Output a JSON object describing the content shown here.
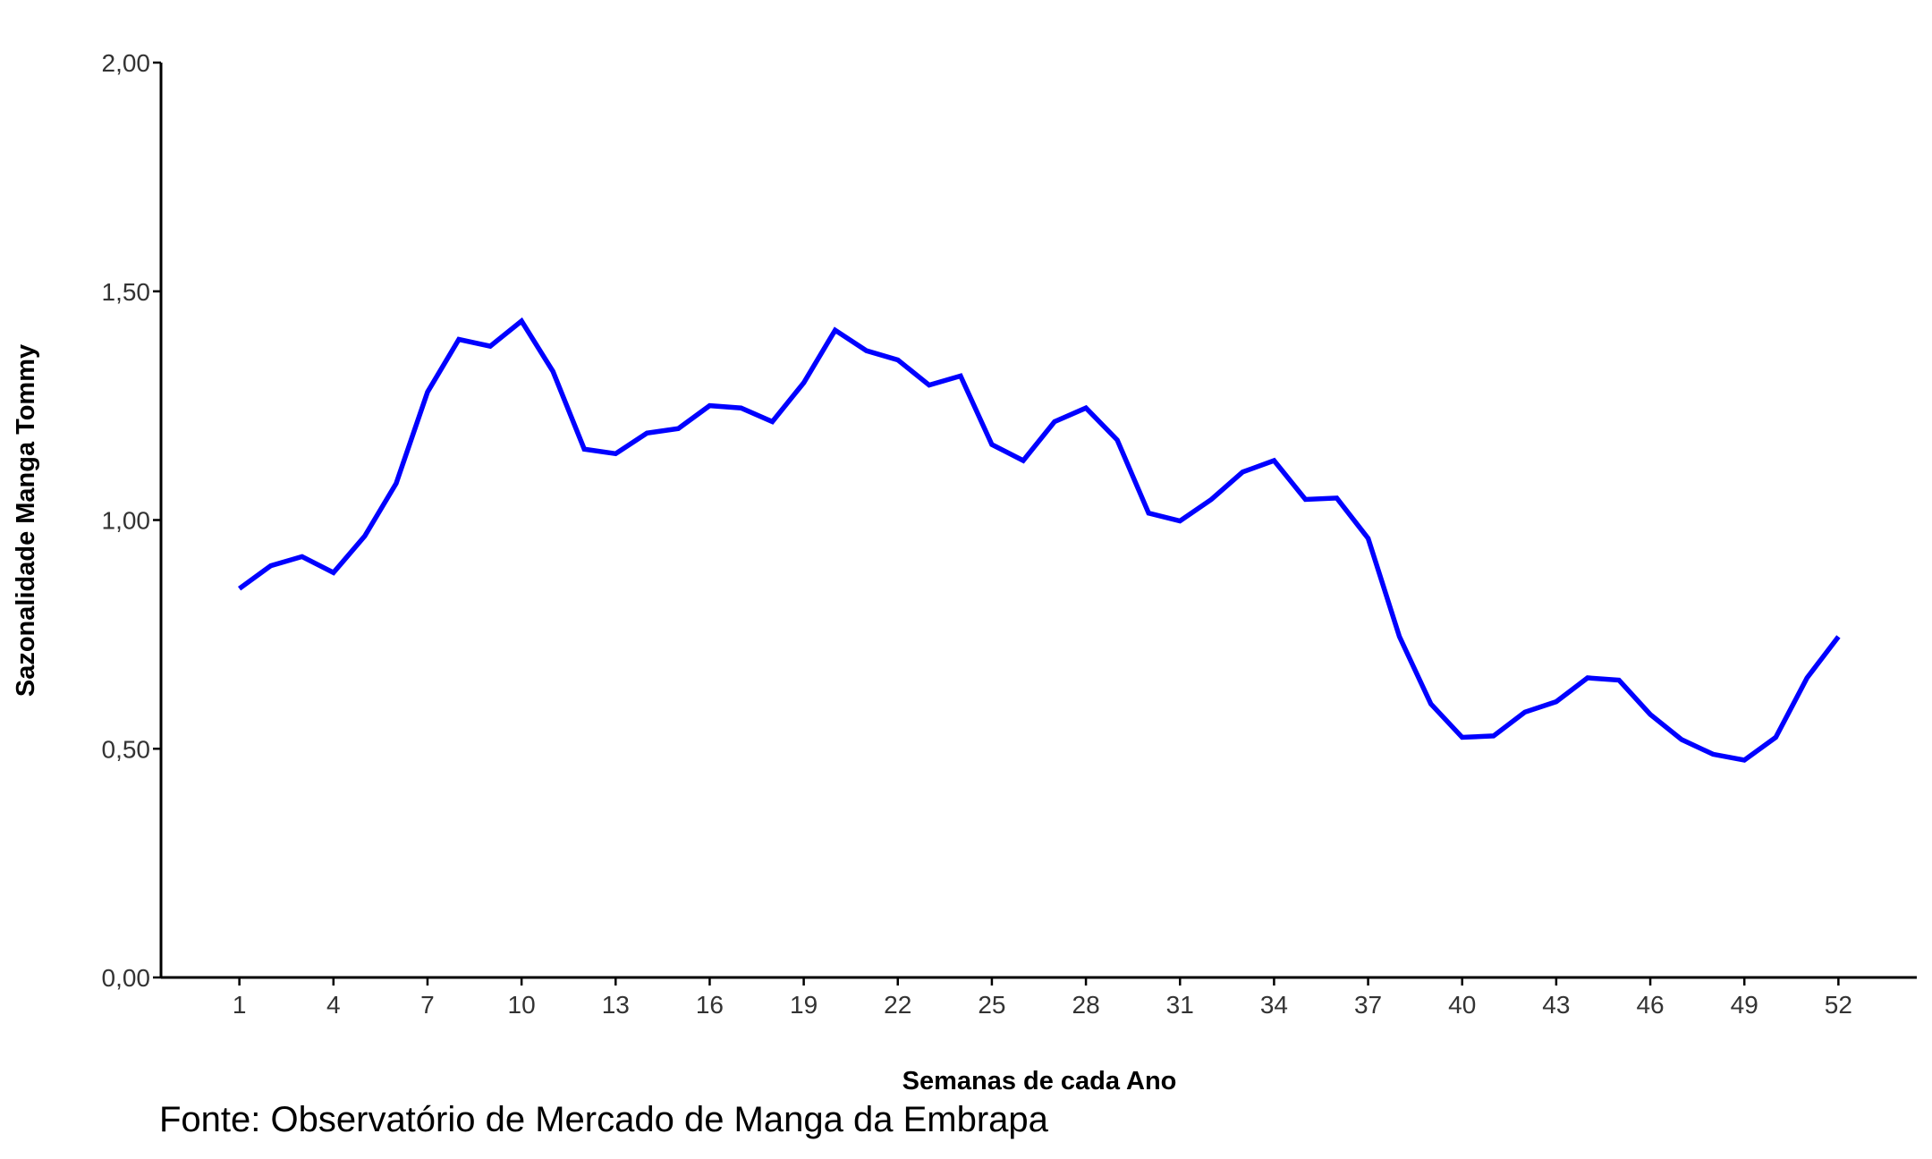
{
  "chart_data": {
    "type": "line",
    "title": "",
    "xlabel": "Semanas de cada Ano",
    "ylabel": "Sazonalidade Manga Tommy",
    "xlim": [
      -1.5,
      54.5
    ],
    "ylim": [
      0,
      2
    ],
    "x_ticks": [
      1,
      4,
      7,
      10,
      13,
      16,
      19,
      22,
      25,
      28,
      31,
      34,
      37,
      40,
      43,
      46,
      49,
      52
    ],
    "y_ticks": [
      {
        "value": 0.0,
        "label": "0,00"
      },
      {
        "value": 0.5,
        "label": "0,50"
      },
      {
        "value": 1.0,
        "label": "1,00"
      },
      {
        "value": 1.5,
        "label": "1,50"
      },
      {
        "value": 2.0,
        "label": "2,00"
      }
    ],
    "grid": false,
    "legend": "none",
    "x": [
      1,
      2,
      3,
      4,
      5,
      6,
      7,
      8,
      9,
      10,
      11,
      12,
      13,
      14,
      15,
      16,
      17,
      18,
      19,
      20,
      21,
      22,
      23,
      24,
      25,
      26,
      27,
      28,
      29,
      30,
      31,
      32,
      33,
      34,
      35,
      36,
      37,
      38,
      39,
      40,
      41,
      42,
      43,
      44,
      45,
      46,
      47,
      48,
      49,
      50,
      51,
      52
    ],
    "series": [
      {
        "color": "#0000ff",
        "values": [
          0.85,
          0.9,
          0.92,
          0.885,
          0.965,
          1.08,
          1.28,
          1.395,
          1.38,
          1.435,
          1.325,
          1.155,
          1.145,
          1.19,
          1.2,
          1.25,
          1.245,
          1.215,
          1.3,
          1.415,
          1.37,
          1.35,
          1.295,
          1.315,
          1.165,
          1.13,
          1.215,
          1.245,
          1.175,
          1.015,
          0.998,
          1.045,
          1.105,
          1.13,
          1.045,
          1.048,
          0.96,
          0.745,
          0.598,
          0.525,
          0.528,
          0.58,
          0.603,
          0.655,
          0.65,
          0.575,
          0.52,
          0.488,
          0.475,
          0.525,
          0.655,
          0.745
        ]
      }
    ]
  },
  "source_note": "Fonte: Observatório de Mercado de Manga da Embrapa"
}
